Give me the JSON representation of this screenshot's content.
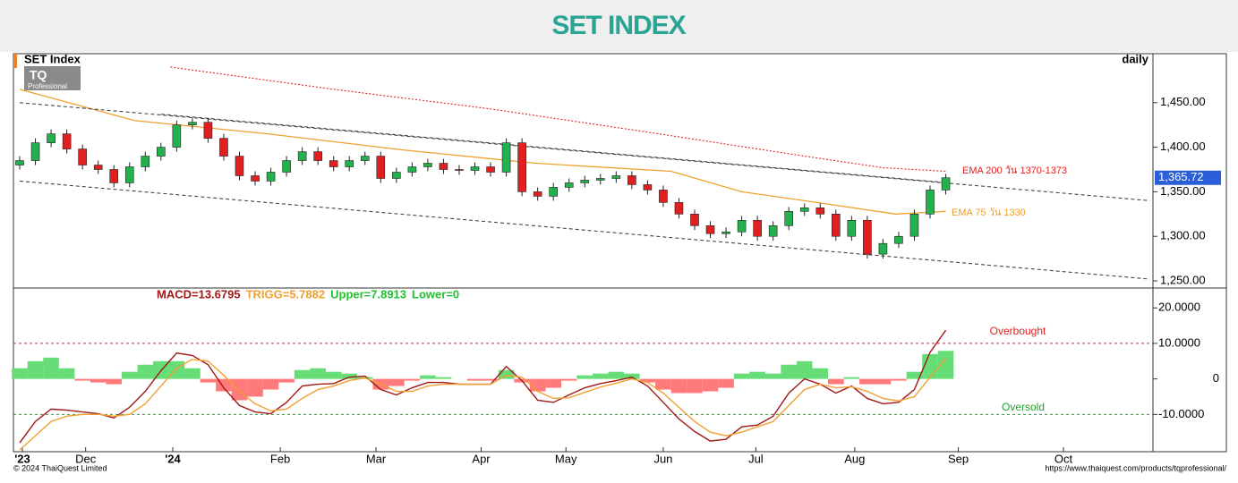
{
  "header": {
    "title": "SET INDEX"
  },
  "footer": {
    "left": "© 2024 ThaiQuest Limited",
    "right": "https://www.thaiquest.com/products/tqprofessional/"
  },
  "logo": {
    "text": "TQ",
    "sub": "Professional"
  },
  "chart_data": [
    {
      "type": "candlestick",
      "title": "SET Index",
      "subtitle": "daily",
      "xlim": [
        -0.4,
        72.2
      ],
      "ylim": [
        1242,
        1505
      ],
      "xticks": [
        {
          "value": 0.17,
          "label": "'23"
        },
        {
          "value": 4.2,
          "label": "Dec"
        },
        {
          "value": 9.75,
          "label": "'24"
        },
        {
          "value": 16.6,
          "label": "Feb"
        },
        {
          "value": 22.7,
          "label": "Mar"
        },
        {
          "value": 29.4,
          "label": "Apr"
        },
        {
          "value": 34.8,
          "label": "May"
        },
        {
          "value": 41,
          "label": "Jun"
        },
        {
          "value": 46.9,
          "label": "Jul"
        },
        {
          "value": 53.2,
          "label": "Aug"
        },
        {
          "value": 59.8,
          "label": "Sep"
        },
        {
          "value": 66.5,
          "label": "Oct"
        }
      ],
      "yticks": [
        {
          "value": 1250,
          "label": "1,250.00"
        },
        {
          "value": 1300,
          "label": "1,300.00"
        },
        {
          "value": 1350,
          "label": "1,350.00"
        },
        {
          "value": 1400,
          "label": "1,400.00"
        },
        {
          "value": 1450,
          "label": "1,450.00"
        }
      ],
      "up_color": "#22b14c",
      "down_color": "#e02020",
      "open": [
        1380,
        1385,
        1405,
        1415,
        1398,
        1380,
        1375,
        1360,
        1378,
        1390,
        1400,
        1425,
        1428,
        1410,
        1390,
        1368,
        1362,
        1372,
        1385,
        1395,
        1385,
        1378,
        1385,
        1390,
        1365,
        1372,
        1378,
        1382,
        1375,
        1374,
        1378,
        1372,
        1405,
        1350,
        1345,
        1355,
        1360,
        1363,
        1365,
        1368,
        1358,
        1352,
        1338,
        1325,
        1312,
        1303,
        1305,
        1318,
        1300,
        1312,
        1328,
        1332,
        1325,
        1300,
        1318,
        1280,
        1292,
        1300,
        1325,
        1352
      ],
      "high": [
        1390,
        1410,
        1420,
        1420,
        1403,
        1385,
        1380,
        1383,
        1395,
        1405,
        1430,
        1433,
        1433,
        1415,
        1395,
        1373,
        1377,
        1390,
        1400,
        1400,
        1390,
        1390,
        1395,
        1395,
        1377,
        1383,
        1387,
        1387,
        1380,
        1383,
        1383,
        1410,
        1410,
        1355,
        1360,
        1365,
        1368,
        1370,
        1373,
        1373,
        1363,
        1357,
        1343,
        1330,
        1317,
        1310,
        1323,
        1323,
        1317,
        1333,
        1337,
        1337,
        1330,
        1323,
        1323,
        1297,
        1305,
        1330,
        1357,
        1370
      ],
      "low": [
        1375,
        1380,
        1400,
        1393,
        1375,
        1370,
        1355,
        1355,
        1373,
        1385,
        1395,
        1420,
        1405,
        1385,
        1363,
        1357,
        1357,
        1367,
        1380,
        1380,
        1373,
        1373,
        1380,
        1360,
        1360,
        1367,
        1373,
        1370,
        1369,
        1369,
        1367,
        1367,
        1345,
        1340,
        1340,
        1350,
        1355,
        1358,
        1360,
        1353,
        1347,
        1333,
        1320,
        1307,
        1298,
        1298,
        1300,
        1295,
        1295,
        1307,
        1323,
        1320,
        1295,
        1295,
        1275,
        1275,
        1287,
        1295,
        1320,
        1347
      ],
      "close": [
        1385,
        1405,
        1415,
        1398,
        1380,
        1375,
        1360,
        1378,
        1390,
        1400,
        1425,
        1428,
        1410,
        1390,
        1368,
        1362,
        1372,
        1385,
        1395,
        1385,
        1378,
        1385,
        1390,
        1365,
        1372,
        1378,
        1382,
        1375,
        1374,
        1378,
        1372,
        1405,
        1350,
        1345,
        1355,
        1360,
        1363,
        1365,
        1368,
        1358,
        1352,
        1338,
        1325,
        1312,
        1303,
        1305,
        1318,
        1300,
        1312,
        1328,
        1332,
        1325,
        1300,
        1318,
        1280,
        1292,
        1300,
        1325,
        1352,
        1365.72
      ],
      "last": {
        "value": 1365.72,
        "label": "1,365.72"
      },
      "lines": [
        {
          "name": "EMA 200 วัน 1370-1373",
          "color": "#e02020",
          "style": "dotted",
          "x": [
            9.6,
            20,
            30,
            40,
            50,
            55,
            59
          ],
          "values": [
            1490,
            1465,
            1443,
            1417,
            1390,
            1377,
            1373
          ]
        },
        {
          "name": "EMA 75 วัน 1330",
          "color": "#f0a030",
          "style": "solid",
          "x": [
            0,
            7.3,
            15.8,
            24.4,
            32.9,
            41.5,
            46,
            50,
            55.8,
            59
          ],
          "values": [
            1465,
            1430,
            1415,
            1397,
            1382,
            1373,
            1350,
            1340,
            1325,
            1328
          ]
        },
        {
          "color": "#444444",
          "style": "dashed",
          "x": [
            0,
            72
          ],
          "values": [
            1450,
            1340
          ]
        },
        {
          "color": "#444444",
          "style": "dashed",
          "x": [
            9,
            59.2
          ],
          "values": [
            1437,
            1360
          ]
        },
        {
          "color": "#444444",
          "style": "dashed",
          "x": [
            0,
            72
          ],
          "values": [
            1362,
            1252
          ]
        }
      ]
    },
    {
      "type": "macd",
      "ylim": [
        -20.5,
        25.6
      ],
      "yticks": [
        {
          "value": -10,
          "label": "-10.0000"
        },
        0,
        {
          "value": 10,
          "label": "10.0000"
        },
        {
          "value": 20,
          "label": "20.0000"
        }
      ],
      "legend": [
        {
          "name": "MACD=13.6795",
          "color": "#a01818"
        },
        {
          "name": "TRIGG=5.7882",
          "color": "#f0a030"
        },
        {
          "name": "Upper=7.8913",
          "color": "#22c030"
        },
        {
          "name": "Lower=0",
          "color": "#22c030"
        }
      ],
      "levels": [
        {
          "value": 10,
          "label": "Overbought",
          "color": "#e02020"
        },
        {
          "value": -10,
          "label": "Oversold",
          "color": "#22a030"
        }
      ],
      "histogram": {
        "pos_color": "#66dd77",
        "neg_color": "#ff7a7a",
        "values": [
          3,
          5,
          6,
          3,
          -0.5,
          -1,
          -1.5,
          2,
          4,
          5,
          5,
          3,
          -1,
          -3.5,
          -6,
          -5,
          -3,
          -1,
          2.5,
          3,
          2,
          1.5,
          0.5,
          -3,
          -2,
          -0.5,
          1,
          0.5,
          0,
          -0.5,
          -0.5,
          2.5,
          -1,
          -3.5,
          -2.5,
          -0.5,
          1,
          1.5,
          2,
          1.5,
          -1,
          -3,
          -4,
          -4,
          -3.5,
          -2.5,
          1.5,
          2,
          1.5,
          4,
          5,
          3,
          -1.5,
          0.5,
          -1.5,
          -1.5,
          -0.5,
          2,
          7,
          7.9
        ]
      },
      "series": [
        {
          "color": "#a01818",
          "values": [
            -18,
            -12,
            -8.5,
            -8.8,
            -9.3,
            -9.8,
            -11,
            -8,
            -3.5,
            2.3,
            7.3,
            6.6,
            4,
            -2.5,
            -7.5,
            -9.3,
            -9.8,
            -6.6,
            -2,
            -1.5,
            -1.3,
            0.5,
            0.8,
            -3,
            -4.5,
            -2.5,
            -1,
            -1,
            -1.5,
            -1.5,
            -1.5,
            3.5,
            -0.5,
            -6,
            -6.6,
            -4.5,
            -2.5,
            -1.3,
            -0.5,
            0.5,
            -2,
            -6.6,
            -11.3,
            -14.8,
            -17.5,
            -17,
            -13.5,
            -13,
            -10.5,
            -4,
            0,
            -1.5,
            -4,
            -2,
            -5.5,
            -7,
            -6.6,
            -3,
            7.5,
            13.6795
          ]
        },
        {
          "color": "#f0a030",
          "values": [
            -20,
            -16,
            -12,
            -10.5,
            -10,
            -10,
            -10.5,
            -10,
            -7,
            -2,
            3,
            5.5,
            5,
            1,
            -3.5,
            -7,
            -9,
            -8.5,
            -5.5,
            -3,
            -2,
            -0.5,
            0.3,
            -1.5,
            -3.5,
            -3.5,
            -2,
            -1.5,
            -1.5,
            -1.5,
            -1.5,
            1,
            0.5,
            -3.5,
            -5.5,
            -5.3,
            -3.8,
            -2.3,
            -1.2,
            0,
            -1,
            -4,
            -8,
            -12,
            -15,
            -16,
            -15,
            -13.5,
            -12,
            -7.5,
            -3,
            -1.5,
            -2.5,
            -2.2,
            -3.5,
            -5.5,
            -6.2,
            -5,
            0.5,
            5.7882
          ]
        }
      ]
    }
  ]
}
